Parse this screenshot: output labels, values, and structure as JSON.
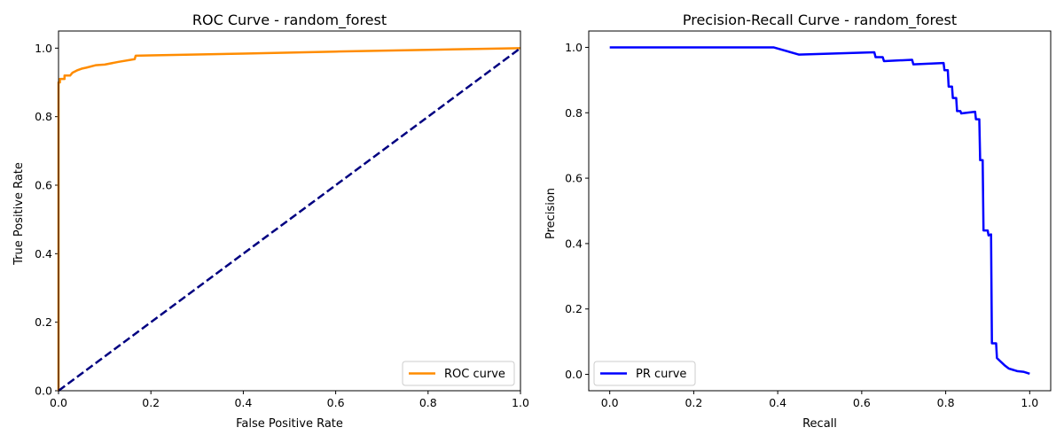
{
  "chart_data": [
    {
      "type": "line",
      "title": "ROC Curve - random_forest",
      "xlabel": "False Positive Rate",
      "ylabel": "True Positive Rate",
      "xlim": [
        0.0,
        1.0
      ],
      "ylim": [
        0.0,
        1.05
      ],
      "xticks": [
        "0.0",
        "0.2",
        "0.4",
        "0.6",
        "0.8",
        "1.0"
      ],
      "yticks": [
        "0.0",
        "0.2",
        "0.4",
        "0.6",
        "0.8",
        "1.0"
      ],
      "grid": false,
      "legend_position": "lower right",
      "series": [
        {
          "name": "ROC curve",
          "color": "#ff8c00",
          "style": "solid",
          "x": [
            0.0,
            0.0,
            0.0,
            0.003,
            0.003,
            0.013,
            0.013,
            0.025,
            0.03,
            0.04,
            0.05,
            0.06,
            0.08,
            0.1,
            0.13,
            0.165,
            0.167,
            0.2,
            0.4,
            0.6,
            0.8,
            1.0
          ],
          "y": [
            0.0,
            0.87,
            0.9,
            0.9,
            0.91,
            0.91,
            0.92,
            0.92,
            0.928,
            0.935,
            0.94,
            0.943,
            0.95,
            0.952,
            0.96,
            0.968,
            0.978,
            0.979,
            0.984,
            0.99,
            0.995,
            1.0
          ]
        },
        {
          "name": "",
          "color": "#000080",
          "style": "dashed",
          "x": [
            0.0,
            1.0
          ],
          "y": [
            0.0,
            1.0
          ]
        }
      ]
    },
    {
      "type": "line",
      "title": "Precision-Recall Curve - random_forest",
      "xlabel": "Recall",
      "ylabel": "Precision",
      "xlim": [
        -0.05,
        1.05
      ],
      "ylim": [
        -0.05,
        1.05
      ],
      "xticks": [
        "0.0",
        "0.2",
        "0.4",
        "0.6",
        "0.8",
        "1.0"
      ],
      "yticks": [
        "0.0",
        "0.2",
        "0.4",
        "0.6",
        "0.8",
        "1.0"
      ],
      "grid": false,
      "legend_position": "lower left",
      "series": [
        {
          "name": "PR curve",
          "color": "#0000ff",
          "style": "solid",
          "x": [
            0.0,
            0.39,
            0.45,
            0.63,
            0.633,
            0.65,
            0.653,
            0.72,
            0.723,
            0.795,
            0.797,
            0.805,
            0.807,
            0.815,
            0.817,
            0.825,
            0.827,
            0.835,
            0.837,
            0.87,
            0.872,
            0.88,
            0.882,
            0.888,
            0.89,
            0.9,
            0.902,
            0.908,
            0.91,
            0.92,
            0.922,
            0.93,
            0.94,
            0.95,
            0.96,
            0.97,
            0.985,
            1.0
          ],
          "y": [
            1.0,
            1.0,
            0.978,
            0.985,
            0.97,
            0.97,
            0.958,
            0.962,
            0.948,
            0.952,
            0.93,
            0.93,
            0.88,
            0.88,
            0.845,
            0.845,
            0.805,
            0.805,
            0.798,
            0.803,
            0.78,
            0.78,
            0.655,
            0.655,
            0.44,
            0.44,
            0.425,
            0.428,
            0.095,
            0.095,
            0.05,
            0.04,
            0.028,
            0.018,
            0.014,
            0.01,
            0.008,
            0.002
          ]
        }
      ]
    }
  ]
}
